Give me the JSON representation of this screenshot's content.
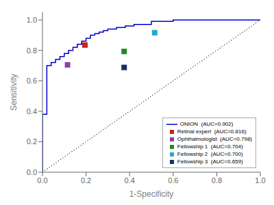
{
  "chart_data": {
    "type": "line",
    "xlabel": "1-Specificity",
    "ylabel": "Sensitivity",
    "xlim": [
      0.0,
      1.0
    ],
    "ylim": [
      0.0,
      1.05
    ],
    "xticks": [
      {
        "value": 0,
        "label": "0.0"
      },
      0.2,
      0.4,
      0.6,
      0.8,
      {
        "value": 1,
        "label": "1.0"
      }
    ],
    "yticks": [
      {
        "value": 0,
        "label": "0.0"
      },
      0.2,
      0.4,
      0.6,
      0.8,
      {
        "value": 1,
        "label": "1.0"
      }
    ],
    "legend": "lower right",
    "series": [
      {
        "color": "#111111",
        "line_style": "dotted",
        "x": [
          0,
          1
        ],
        "values": [
          0,
          1
        ]
      },
      {
        "name": "ONION  (AUC=0.902)",
        "color": "#0000cc",
        "x": [
          0.0,
          0.0,
          0.02,
          0.02,
          0.04,
          0.04,
          0.06,
          0.06,
          0.08,
          0.08,
          0.1,
          0.1,
          0.12,
          0.12,
          0.14,
          0.14,
          0.16,
          0.16,
          0.18,
          0.18,
          0.2,
          0.2,
          0.22,
          0.22,
          0.24,
          0.24,
          0.26,
          0.26,
          0.28,
          0.28,
          0.3,
          0.3,
          0.34,
          0.34,
          0.38,
          0.38,
          0.42,
          0.42,
          0.5,
          0.5,
          0.6,
          0.6,
          1.0
        ],
        "values": [
          0.0,
          0.38,
          0.38,
          0.7,
          0.7,
          0.72,
          0.72,
          0.74,
          0.74,
          0.76,
          0.76,
          0.78,
          0.78,
          0.8,
          0.8,
          0.82,
          0.82,
          0.84,
          0.84,
          0.86,
          0.86,
          0.88,
          0.88,
          0.9,
          0.9,
          0.91,
          0.91,
          0.92,
          0.92,
          0.93,
          0.93,
          0.94,
          0.94,
          0.95,
          0.95,
          0.96,
          0.96,
          0.97,
          0.97,
          0.99,
          0.99,
          1.0,
          1.0
        ]
      },
      {
        "name": "Retinal expert  (AUC=0.816)",
        "type": "scatter",
        "marker": "square",
        "color": "#cc2222",
        "x": [
          0.195
        ],
        "values": [
          0.835
        ]
      },
      {
        "name": "Ophthalmologist  (AUC=0.798)",
        "type": "scatter",
        "marker": "square",
        "color": "#8844aa",
        "x": [
          0.115
        ],
        "values": [
          0.705
        ]
      },
      {
        "name": "Fellowship 1  (AUC=0.704)",
        "type": "scatter",
        "marker": "square",
        "color": "#228822",
        "x": [
          0.375
        ],
        "values": [
          0.793
        ]
      },
      {
        "name": "Fellowship 2  (AUC=0.700)",
        "type": "scatter",
        "marker": "square",
        "color": "#22aacc",
        "x": [
          0.515
        ],
        "values": [
          0.916
        ]
      },
      {
        "name": "Fellowship 3  (AUC=0.659)",
        "type": "scatter",
        "marker": "square",
        "color": "#1a2a6a",
        "x": [
          0.375
        ],
        "values": [
          0.688
        ]
      }
    ]
  }
}
